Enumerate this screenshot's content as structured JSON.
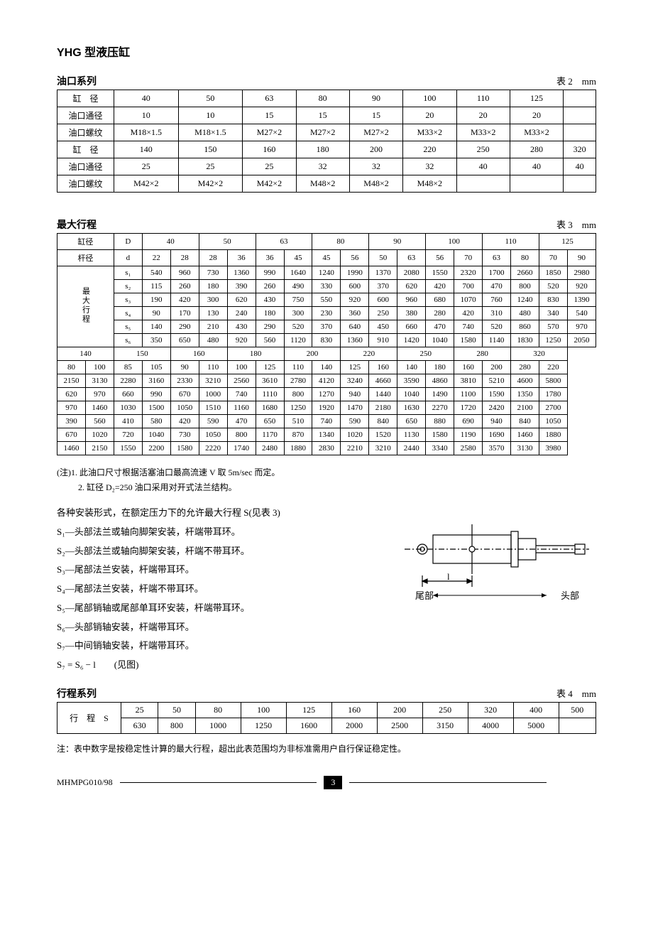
{
  "title": "YHG 型液压缸",
  "table2": {
    "header": "油口系列",
    "label": "表 2　mm",
    "rows": [
      [
        "缸　径",
        "40",
        "50",
        "63",
        "80",
        "90",
        "100",
        "110",
        "125",
        ""
      ],
      [
        "油口通径",
        "10",
        "10",
        "15",
        "15",
        "15",
        "20",
        "20",
        "20",
        ""
      ],
      [
        "油口螺纹",
        "M18×1.5",
        "M18×1.5",
        "M27×2",
        "M27×2",
        "M27×2",
        "M33×2",
        "M33×2",
        "M33×2",
        ""
      ],
      [
        "缸　径",
        "140",
        "150",
        "160",
        "180",
        "200",
        "220",
        "250",
        "280",
        "320"
      ],
      [
        "油口通径",
        "25",
        "25",
        "25",
        "32",
        "32",
        "32",
        "40",
        "40",
        "40"
      ],
      [
        "油口螺纹",
        "M42×2",
        "M42×2",
        "M42×2",
        "M48×2",
        "M48×2",
        "M48×2",
        "",
        "",
        ""
      ]
    ]
  },
  "table3": {
    "header": "最大行程",
    "label": "表 3　mm",
    "top_labels": {
      "cylD": "缸径",
      "D": "D",
      "rodd": "杆径",
      "d": "d",
      "maxstroke": "最大行程"
    },
    "top_D": [
      "40",
      "50",
      "63",
      "80",
      "90",
      "100",
      "110",
      "125"
    ],
    "top_d": [
      "22",
      "28",
      "28",
      "36",
      "36",
      "45",
      "45",
      "56",
      "50",
      "63",
      "56",
      "70",
      "63",
      "80",
      "70",
      "90"
    ],
    "s_labels": [
      "s₁",
      "s₂",
      "s₃",
      "s₄",
      "s₅",
      "s₆"
    ],
    "s_rows": [
      [
        "540",
        "960",
        "730",
        "1360",
        "990",
        "1640",
        "1240",
        "1990",
        "1370",
        "2080",
        "1550",
        "2320",
        "1700",
        "2660",
        "1850",
        "2980"
      ],
      [
        "115",
        "260",
        "180",
        "390",
        "260",
        "490",
        "330",
        "600",
        "370",
        "620",
        "420",
        "700",
        "470",
        "800",
        "520",
        "920"
      ],
      [
        "190",
        "420",
        "300",
        "620",
        "430",
        "750",
        "550",
        "920",
        "600",
        "960",
        "680",
        "1070",
        "760",
        "1240",
        "830",
        "1390"
      ],
      [
        "90",
        "170",
        "130",
        "240",
        "180",
        "300",
        "230",
        "360",
        "250",
        "380",
        "280",
        "420",
        "310",
        "480",
        "340",
        "540"
      ],
      [
        "140",
        "290",
        "210",
        "430",
        "290",
        "520",
        "370",
        "640",
        "450",
        "660",
        "470",
        "740",
        "520",
        "860",
        "570",
        "970"
      ],
      [
        "350",
        "650",
        "480",
        "920",
        "560",
        "1120",
        "830",
        "1360",
        "910",
        "1420",
        "1040",
        "1580",
        "1140",
        "1830",
        "1250",
        "2050"
      ]
    ],
    "bot_D": [
      "140",
      "150",
      "160",
      "180",
      "200",
      "220",
      "250",
      "280",
      "320"
    ],
    "bot_d": [
      "80",
      "100",
      "85",
      "105",
      "90",
      "110",
      "100",
      "125",
      "110",
      "140",
      "125",
      "160",
      "140",
      "180",
      "160",
      "200",
      "280",
      "220"
    ],
    "bot_rows": [
      [
        "2150",
        "3130",
        "2280",
        "3160",
        "2330",
        "3210",
        "2560",
        "3610",
        "2780",
        "4120",
        "3240",
        "4660",
        "3590",
        "4860",
        "3810",
        "5210",
        "4600",
        "5800"
      ],
      [
        "620",
        "970",
        "660",
        "990",
        "670",
        "1000",
        "740",
        "1110",
        "800",
        "1270",
        "940",
        "1440",
        "1040",
        "1490",
        "1100",
        "1590",
        "1350",
        "1780"
      ],
      [
        "970",
        "1460",
        "1030",
        "1500",
        "1050",
        "1510",
        "1160",
        "1680",
        "1250",
        "1920",
        "1470",
        "2180",
        "1630",
        "2270",
        "1720",
        "2420",
        "2100",
        "2700"
      ],
      [
        "390",
        "560",
        "410",
        "580",
        "420",
        "590",
        "470",
        "650",
        "510",
        "740",
        "590",
        "840",
        "650",
        "880",
        "690",
        "940",
        "840",
        "1050"
      ],
      [
        "670",
        "1020",
        "720",
        "1040",
        "730",
        "1050",
        "800",
        "1170",
        "870",
        "1340",
        "1020",
        "1520",
        "1130",
        "1580",
        "1190",
        "1690",
        "1460",
        "1880"
      ],
      [
        "1460",
        "2150",
        "1550",
        "2200",
        "1580",
        "2220",
        "1740",
        "2480",
        "1880",
        "2830",
        "2210",
        "3210",
        "2440",
        "3340",
        "2580",
        "3570",
        "3130",
        "3980"
      ]
    ]
  },
  "notes1": {
    "l1": "(注)1. 此油口尺寸根据活塞油口最高流速 V 取 5m/sec 而定。",
    "l2": "2. 缸径 D₂=250 油口采用对开式法兰结构。"
  },
  "desc": {
    "l0": "各种安装形式，在额定压力下的允许最大行程 S(见表 3)",
    "l1": "S₁—头部法兰或轴向脚架安装，杆端带耳环。",
    "l2": "S₂—头部法兰或轴向脚架安装，杆端不带耳环。",
    "l3": "S₃—尾部法兰安装，杆端带耳环。",
    "l4": "S₄—尾部法兰安装，杆端不带耳环。",
    "l5": "S₅—尾部销轴或尾部单耳环安装，杆端带耳环。",
    "l6": "S₆—头部销轴安装，杆端带耳环。",
    "l7": "S₇—中间销轴安装，杆端带耳环。",
    "formula": "S₇ = S₆ − l　　(见图)"
  },
  "diagram_labels": {
    "tail": "尾部",
    "head": "头部",
    "l": "l"
  },
  "table4": {
    "header": "行程系列",
    "label": "表 4　mm",
    "rowlabel": "行　程　S",
    "r1": [
      "25",
      "50",
      "80",
      "100",
      "125",
      "160",
      "200",
      "250",
      "320",
      "400",
      "500"
    ],
    "r2": [
      "630",
      "800",
      "1000",
      "1250",
      "1600",
      "2000",
      "2500",
      "3150",
      "4000",
      "5000",
      ""
    ]
  },
  "note2": "注：表中数字是按稳定性计算的最大行程，超出此表范围均为非标准需用户自行保证稳定性。",
  "footer": {
    "code": "MHMPG010/98",
    "page": "3"
  }
}
